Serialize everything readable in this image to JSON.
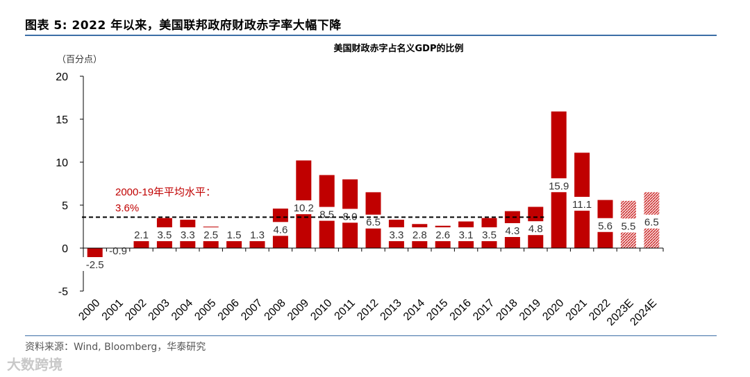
{
  "figure": {
    "header_title": "图表 5:    2022 年以来，美国联邦政府财政赤字率大幅下降",
    "source": "资料来源：Wind, Bloomberg，华泰研究",
    "watermark": "大数跨境"
  },
  "colors": {
    "bar": "#c00000",
    "hatch_bg": "#f5d0d0",
    "rule": "#3b6ea5"
  },
  "chart_data": {
    "type": "bar",
    "title": "美国财政赤字占名义GDP的比例",
    "unit_label": "（百分点）",
    "ylim": [
      -5,
      20
    ],
    "yticks": [
      -5,
      0,
      5,
      10,
      15,
      20
    ],
    "categories": [
      "2000",
      "2001",
      "2002",
      "2003",
      "2004",
      "2005",
      "2006",
      "2007",
      "2008",
      "2009",
      "2010",
      "2011",
      "2012",
      "2013",
      "2014",
      "2015",
      "2016",
      "2017",
      "2018",
      "2019",
      "2020",
      "2021",
      "2022",
      "2023E",
      "2024E"
    ],
    "values": [
      -2.5,
      -0.9,
      2.1,
      3.5,
      3.3,
      2.5,
      1.5,
      1.3,
      4.6,
      10.2,
      8.5,
      8.0,
      6.5,
      3.3,
      2.8,
      2.6,
      3.1,
      3.5,
      4.3,
      4.8,
      15.9,
      11.1,
      5.6,
      5.5,
      6.5
    ],
    "data_labels": [
      "-2.5",
      "-0.9",
      "2.1",
      "3.5",
      "3.3",
      "2.5",
      "1.5",
      "1.3",
      "4.6",
      "10.2",
      "8.5",
      "8.0",
      "6.5",
      "3.3",
      "2.8",
      "2.6",
      "3.1",
      "3.5",
      "4.3",
      "4.8",
      "15.9",
      "11.1",
      "5.6",
      "5.5",
      "6.5"
    ],
    "forecast": [
      false,
      false,
      false,
      false,
      false,
      false,
      false,
      false,
      false,
      false,
      false,
      false,
      false,
      false,
      false,
      false,
      false,
      false,
      false,
      false,
      false,
      false,
      false,
      true,
      true
    ],
    "reference_line": {
      "value": 3.6,
      "label_line1": "2000-19年平均水平：",
      "label_line2": "3.6%"
    }
  }
}
